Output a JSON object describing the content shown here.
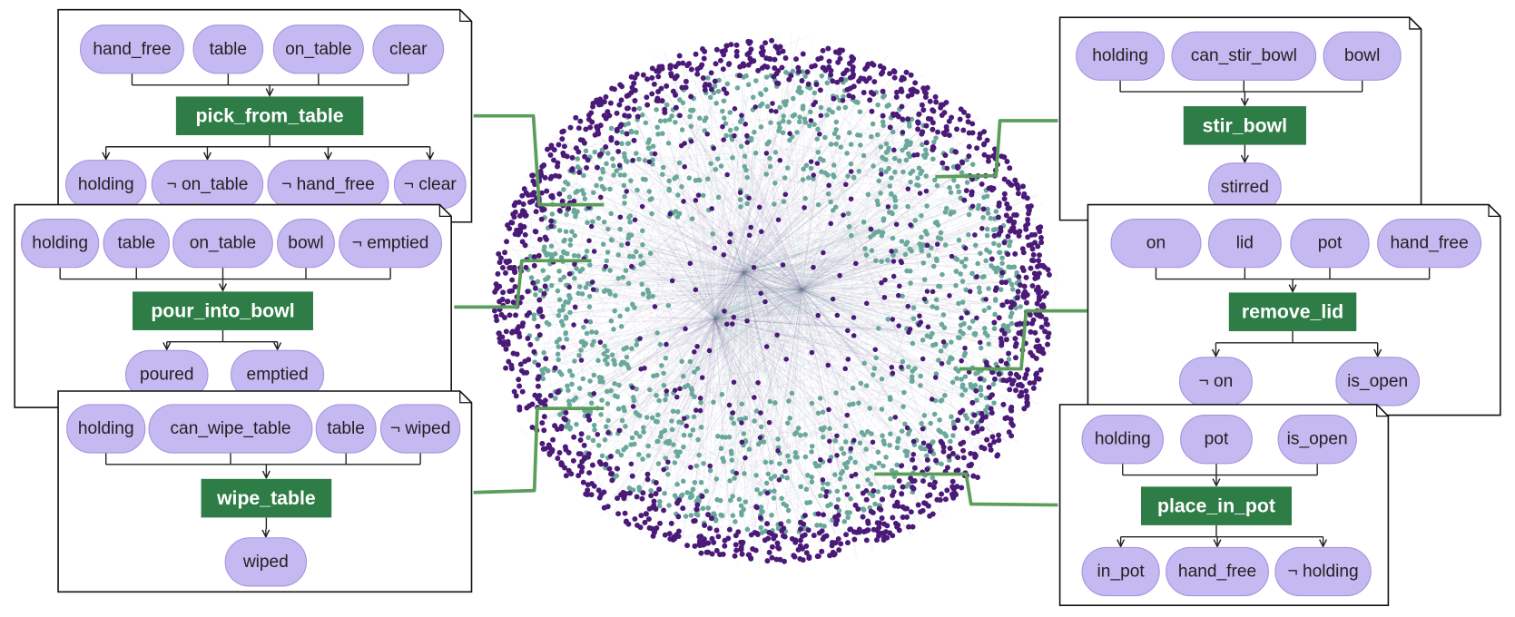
{
  "cards": [
    {
      "preconditions": [
        "hand_free",
        "table",
        "on_table",
        "clear"
      ],
      "action": "pick_from_table",
      "effects": [
        "holding",
        "¬ on_table",
        "¬ hand_free",
        "¬ clear"
      ]
    },
    {
      "preconditions": [
        "holding",
        "table",
        "on_table",
        "bowl",
        "¬ emptied"
      ],
      "action": "pour_into_bowl",
      "effects": [
        "poured",
        "emptied"
      ]
    },
    {
      "preconditions": [
        "holding",
        "can_wipe_table",
        "table",
        "¬ wiped"
      ],
      "action": "wipe_table",
      "effects": [
        "wiped"
      ]
    },
    {
      "preconditions": [
        "holding",
        "can_stir_bowl",
        "bowl"
      ],
      "action": "stir_bowl",
      "effects": [
        "stirred"
      ]
    },
    {
      "preconditions": [
        "on",
        "lid",
        "pot",
        "hand_free"
      ],
      "action": "remove_lid",
      "effects": [
        "¬ on",
        "is_open"
      ]
    },
    {
      "preconditions": [
        "holding",
        "pot",
        "is_open"
      ],
      "action": "place_in_pot",
      "effects": [
        "in_pot",
        "hand_free",
        "¬ holding"
      ]
    }
  ]
}
